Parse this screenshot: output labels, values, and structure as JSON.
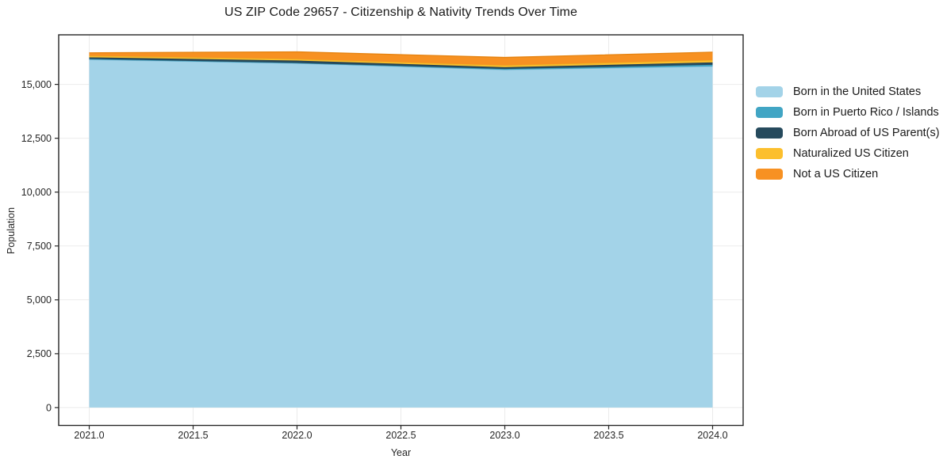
{
  "title": "US ZIP Code 29657 - Citizenship & Nativity Trends Over Time",
  "chart_data": {
    "type": "area",
    "stacked": true,
    "title": "US ZIP Code 29657 - Citizenship & Nativity Trends Over Time",
    "xlabel": "Year",
    "ylabel": "Population",
    "x": [
      2021,
      2022,
      2023,
      2024
    ],
    "series": [
      {
        "name": "Born in the United States",
        "color": "#A3D3E8",
        "edge_color": "#8CC1DC",
        "values": [
          16150,
          15975,
          15675,
          15835
        ]
      },
      {
        "name": "Born in Puerto Rico / Islands",
        "color": "#41A5C4",
        "edge_color": "#3B99B6",
        "values": [
          30,
          20,
          40,
          75
        ]
      },
      {
        "name": "Born Abroad of US Parent(s)",
        "color": "#264A5D",
        "edge_color": "#203F50",
        "values": [
          75,
          110,
          85,
          110
        ]
      },
      {
        "name": "Naturalized US Citizen",
        "color": "#FCBF2D",
        "edge_color": "#EAAE20",
        "values": [
          75,
          75,
          85,
          110
        ]
      },
      {
        "name": "Not a US Citizen",
        "color": "#F79122",
        "edge_color": "#E5820F",
        "values": [
          135,
          330,
          365,
          365
        ]
      }
    ],
    "xlim": [
      2020.853,
      2024.147
    ],
    "ylim": [
      -830,
      17300
    ],
    "xticks": {
      "values": [
        2021.0,
        2021.5,
        2022.0,
        2022.5,
        2023.0,
        2023.5,
        2024.0
      ],
      "labels": [
        "2021.0",
        "2021.5",
        "2022.0",
        "2022.5",
        "2023.0",
        "2023.5",
        "2024.0"
      ]
    },
    "yticks": {
      "values": [
        0,
        2500,
        5000,
        7500,
        10000,
        12500,
        15000
      ],
      "labels": [
        "0",
        "2,500",
        "5,000",
        "7,500",
        "10,000",
        "12,500",
        "15,000"
      ]
    },
    "grid": true,
    "legend_position": "right-outside"
  },
  "colors": {
    "background": "#ffffff",
    "grid": "#ebebeb",
    "axis_border": "#262626",
    "tick_text": "#262626",
    "title_text": "#1a1a1a"
  }
}
